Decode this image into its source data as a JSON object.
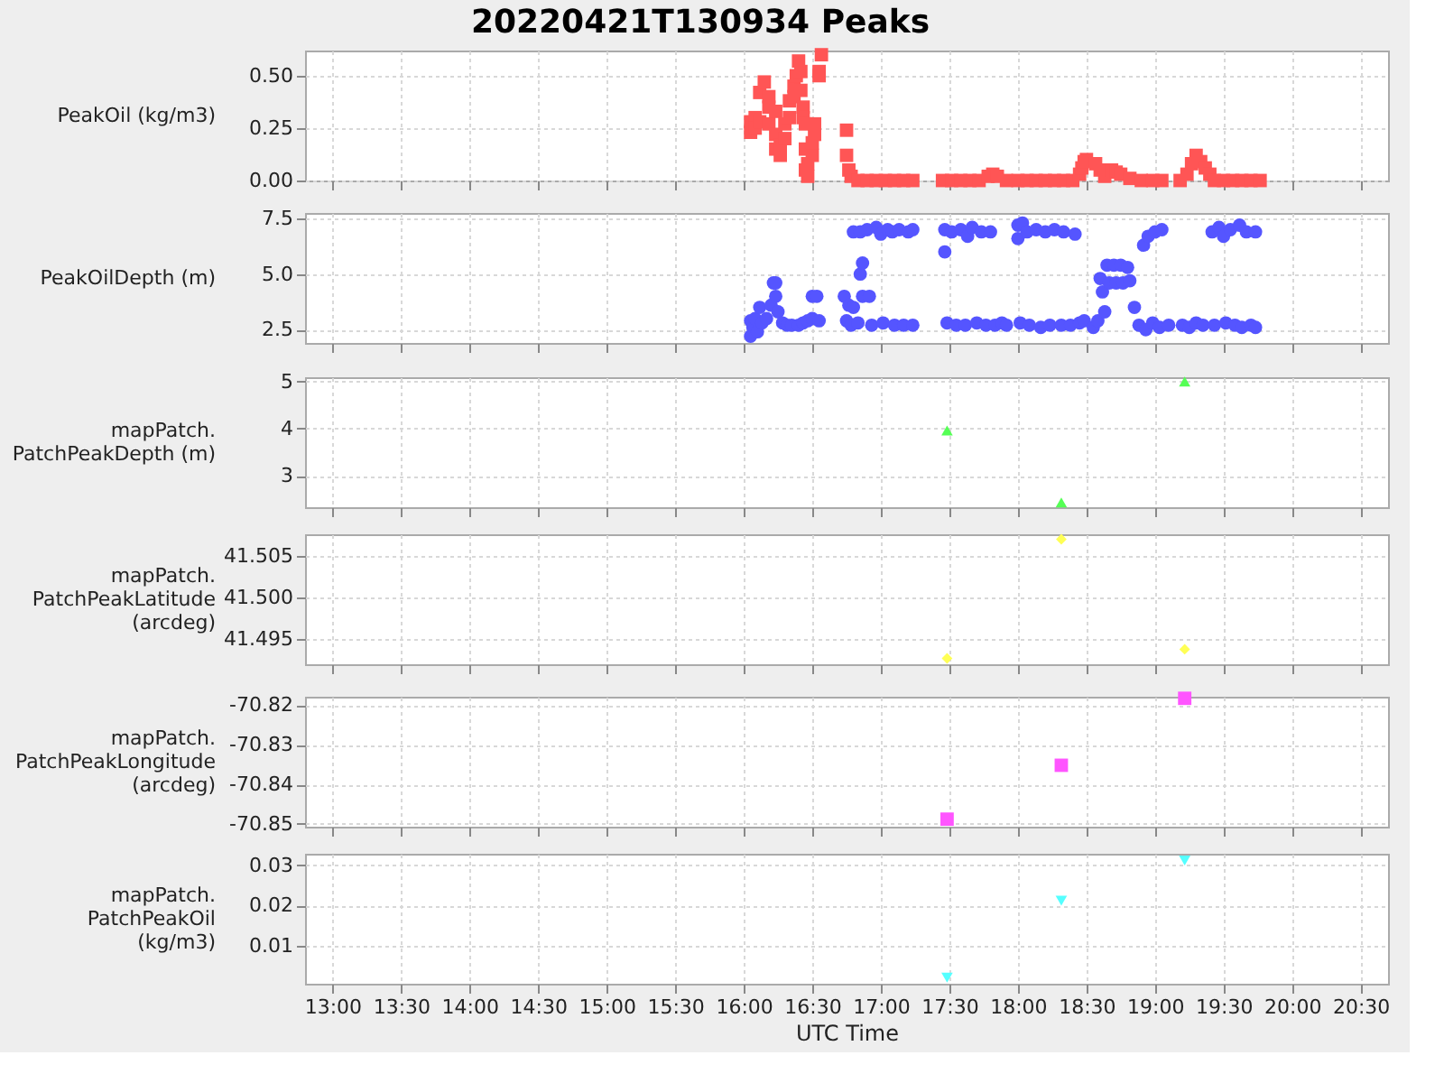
{
  "chart_data": [
    {
      "type": "scatter",
      "title": "20220421T130934 Peaks",
      "ylabel": "PeakOil (kg/m3)",
      "marker": "square",
      "grid": true,
      "tick_labels": "y",
      "xlim": [
        "2022-04-21T12:48",
        "2022-04-21T20:42"
      ],
      "xticks": [
        {
          "value": "2022-04-21T13:00",
          "label": null
        },
        {
          "value": "2022-04-21T13:30",
          "label": null
        },
        {
          "value": "2022-04-21T14:00",
          "label": null
        },
        {
          "value": "2022-04-21T14:30",
          "label": null
        },
        {
          "value": "2022-04-21T15:00",
          "label": null
        },
        {
          "value": "2022-04-21T15:30",
          "label": null
        },
        {
          "value": "2022-04-21T16:00",
          "label": null
        },
        {
          "value": "2022-04-21T16:30",
          "label": null
        },
        {
          "value": "2022-04-21T17:00",
          "label": null
        },
        {
          "value": "2022-04-21T17:30",
          "label": null
        },
        {
          "value": "2022-04-21T18:00",
          "label": null
        },
        {
          "value": "2022-04-21T18:30",
          "label": null
        },
        {
          "value": "2022-04-21T19:00",
          "label": null
        },
        {
          "value": "2022-04-21T19:30",
          "label": null
        },
        {
          "value": "2022-04-21T20:00",
          "label": null
        },
        {
          "value": "2022-04-21T20:30",
          "label": null
        }
      ],
      "ylim": [
        0,
        0.62
      ],
      "yticks": [
        {
          "value": 0,
          "label": "0.00"
        },
        {
          "value": 0.25,
          "label": "0.25"
        },
        {
          "value": 0.5,
          "label": "0.50"
        }
      ],
      "x": [
        "2022-04-21T16:03",
        "2022-04-21T16:03",
        "2022-04-21T16:05",
        "2022-04-21T16:05",
        "2022-04-21T16:07",
        "2022-04-21T16:07",
        "2022-04-21T16:09",
        "2022-04-21T16:11",
        "2022-04-21T16:11",
        "2022-04-21T16:11",
        "2022-04-21T16:14",
        "2022-04-21T16:14",
        "2022-04-21T16:14",
        "2022-04-21T16:16",
        "2022-04-21T16:16",
        "2022-04-21T16:18",
        "2022-04-21T16:18",
        "2022-04-21T16:20",
        "2022-04-21T16:20",
        "2022-04-21T16:22",
        "2022-04-21T16:22",
        "2022-04-21T16:23",
        "2022-04-21T16:24",
        "2022-04-21T16:25",
        "2022-04-21T16:25",
        "2022-04-21T16:26",
        "2022-04-21T16:26",
        "2022-04-21T16:27",
        "2022-04-21T16:27",
        "2022-04-21T16:27",
        "2022-04-21T16:28",
        "2022-04-21T16:28",
        "2022-04-21T16:30",
        "2022-04-21T16:30",
        "2022-04-21T16:31",
        "2022-04-21T16:31",
        "2022-04-21T16:33",
        "2022-04-21T16:33",
        "2022-04-21T16:34",
        "2022-04-21T16:45",
        "2022-04-21T16:45",
        "2022-04-21T16:46",
        "2022-04-21T16:47",
        "2022-04-21T16:50",
        "2022-04-21T16:54",
        "2022-04-21T16:58",
        "2022-04-21T17:02",
        "2022-04-21T17:06",
        "2022-04-21T17:10",
        "2022-04-21T17:14",
        "2022-04-21T17:27",
        "2022-04-21T17:31",
        "2022-04-21T17:35",
        "2022-04-21T17:39",
        "2022-04-21T17:43",
        "2022-04-21T17:47",
        "2022-04-21T17:49",
        "2022-04-21T17:51",
        "2022-04-21T17:55",
        "2022-04-21T18:00",
        "2022-04-21T18:04",
        "2022-04-21T18:08",
        "2022-04-21T18:12",
        "2022-04-21T18:16",
        "2022-04-21T18:20",
        "2022-04-21T18:24",
        "2022-04-21T18:27",
        "2022-04-21T18:28",
        "2022-04-21T18:29",
        "2022-04-21T18:30",
        "2022-04-21T18:34",
        "2022-04-21T18:36",
        "2022-04-21T18:38",
        "2022-04-21T18:41",
        "2022-04-21T18:43",
        "2022-04-21T18:45",
        "2022-04-21T18:49",
        "2022-04-21T18:54",
        "2022-04-21T18:59",
        "2022-04-21T19:03",
        "2022-04-21T19:11",
        "2022-04-21T19:14",
        "2022-04-21T19:16",
        "2022-04-21T19:18",
        "2022-04-21T19:20",
        "2022-04-21T19:22",
        "2022-04-21T19:24",
        "2022-04-21T19:26",
        "2022-04-21T19:30",
        "2022-04-21T19:34",
        "2022-04-21T19:38",
        "2022-04-21T19:42",
        "2022-04-21T19:46"
      ],
      "series": [
        {
          "color": "#ff5555",
          "values": [
            0.28,
            0.23,
            0.3,
            0.25,
            0.42,
            0.28,
            0.47,
            0.4,
            0.35,
            0.27,
            0.15,
            0.22,
            0.33,
            0.12,
            0.17,
            0.2,
            0.27,
            0.3,
            0.38,
            0.45,
            0.4,
            0.5,
            0.57,
            0.52,
            0.43,
            0.35,
            0.3,
            0.27,
            0.15,
            0.05,
            0.02,
            0.08,
            0.12,
            0.18,
            0.22,
            0.27,
            0.52,
            0.5,
            0.6,
            0.24,
            0.12,
            0.05,
            0.02,
            0,
            0,
            0,
            0,
            0,
            0,
            0,
            0,
            0,
            0,
            0,
            0,
            0.02,
            0.03,
            0.02,
            0,
            0,
            0,
            0,
            0,
            0,
            0,
            0,
            0.03,
            0.06,
            0.09,
            0.1,
            0.08,
            0.05,
            0.02,
            0.05,
            0.04,
            0.03,
            0.01,
            0,
            0,
            0,
            0,
            0.03,
            0.08,
            0.12,
            0.09,
            0.06,
            0.03,
            0,
            0,
            0,
            0,
            0,
            0
          ]
        }
      ]
    },
    {
      "type": "scatter",
      "ylabel": "PeakOilDepth (m)",
      "marker": "circle",
      "grid": true,
      "tick_labels": "y",
      "xlim": [
        "2022-04-21T12:48",
        "2022-04-21T20:42"
      ],
      "xticks": [
        {
          "value": "2022-04-21T13:00",
          "label": null
        },
        {
          "value": "2022-04-21T13:30",
          "label": null
        },
        {
          "value": "2022-04-21T14:00",
          "label": null
        },
        {
          "value": "2022-04-21T14:30",
          "label": null
        },
        {
          "value": "2022-04-21T15:00",
          "label": null
        },
        {
          "value": "2022-04-21T15:30",
          "label": null
        },
        {
          "value": "2022-04-21T16:00",
          "label": null
        },
        {
          "value": "2022-04-21T16:30",
          "label": null
        },
        {
          "value": "2022-04-21T17:00",
          "label": null
        },
        {
          "value": "2022-04-21T17:30",
          "label": null
        },
        {
          "value": "2022-04-21T18:00",
          "label": null
        },
        {
          "value": "2022-04-21T18:30",
          "label": null
        },
        {
          "value": "2022-04-21T19:00",
          "label": null
        },
        {
          "value": "2022-04-21T19:30",
          "label": null
        },
        {
          "value": "2022-04-21T20:00",
          "label": null
        },
        {
          "value": "2022-04-21T20:30",
          "label": null
        }
      ],
      "ylim": [
        1.9,
        7.75
      ],
      "yticks": [
        2.5,
        {
          "value": 5,
          "label": "5.0"
        },
        7.5
      ],
      "x": [
        "2022-04-21T16:03",
        "2022-04-21T16:03",
        "2022-04-21T16:04",
        "2022-04-21T16:05",
        "2022-04-21T16:06",
        "2022-04-21T16:07",
        "2022-04-21T16:08",
        "2022-04-21T16:10",
        "2022-04-21T16:12",
        "2022-04-21T16:13",
        "2022-04-21T16:14",
        "2022-04-21T16:14",
        "2022-04-21T16:15",
        "2022-04-21T16:17",
        "2022-04-21T16:19",
        "2022-04-21T16:21",
        "2022-04-21T16:24",
        "2022-04-21T16:26",
        "2022-04-21T16:28",
        "2022-04-21T16:30",
        "2022-04-21T16:30",
        "2022-04-21T16:32",
        "2022-04-21T16:33",
        "2022-04-21T16:44",
        "2022-04-21T16:45",
        "2022-04-21T16:46",
        "2022-04-21T16:47",
        "2022-04-21T16:48",
        "2022-04-21T16:50",
        "2022-04-21T16:51",
        "2022-04-21T16:52",
        "2022-04-21T16:52",
        "2022-04-21T16:55",
        "2022-04-21T16:48",
        "2022-04-21T16:51",
        "2022-04-21T16:54",
        "2022-04-21T16:56",
        "2022-04-21T16:58",
        "2022-04-21T17:00",
        "2022-04-21T17:01",
        "2022-04-21T17:03",
        "2022-04-21T17:05",
        "2022-04-21T17:06",
        "2022-04-21T17:08",
        "2022-04-21T17:10",
        "2022-04-21T17:12",
        "2022-04-21T17:14",
        "2022-04-21T17:14",
        "2022-04-21T17:28",
        "2022-04-21T17:28",
        "2022-04-21T17:29",
        "2022-04-21T17:31",
        "2022-04-21T17:33",
        "2022-04-21T17:35",
        "2022-04-21T17:37",
        "2022-04-21T17:38",
        "2022-04-21T17:40",
        "2022-04-21T17:42",
        "2022-04-21T17:44",
        "2022-04-21T17:46",
        "2022-04-21T17:48",
        "2022-04-21T17:50",
        "2022-04-21T17:53",
        "2022-04-21T17:55",
        "2022-04-21T18:00",
        "2022-04-21T18:00",
        "2022-04-21T18:01",
        "2022-04-21T18:02",
        "2022-04-21T18:04",
        "2022-04-21T18:05",
        "2022-04-21T18:08",
        "2022-04-21T18:10",
        "2022-04-21T18:12",
        "2022-04-21T18:14",
        "2022-04-21T18:16",
        "2022-04-21T18:19",
        "2022-04-21T18:20",
        "2022-04-21T18:23",
        "2022-04-21T18:25",
        "2022-04-21T18:27",
        "2022-04-21T18:29",
        "2022-04-21T18:33",
        "2022-04-21T18:35",
        "2022-04-21T18:36",
        "2022-04-21T18:37",
        "2022-04-21T18:38",
        "2022-04-21T18:39",
        "2022-04-21T18:40",
        "2022-04-21T18:42",
        "2022-04-21T18:43",
        "2022-04-21T18:45",
        "2022-04-21T18:46",
        "2022-04-21T18:48",
        "2022-04-21T18:49",
        "2022-04-21T18:51",
        "2022-04-21T18:53",
        "2022-04-21T18:55",
        "2022-04-21T18:57",
        "2022-04-21T18:56",
        "2022-04-21T18:59",
        "2022-04-21T19:00",
        "2022-04-21T19:02",
        "2022-04-21T19:03",
        "2022-04-21T19:06",
        "2022-04-21T19:12",
        "2022-04-21T19:15",
        "2022-04-21T19:18",
        "2022-04-21T19:21",
        "2022-04-21T19:25",
        "2022-04-21T19:26",
        "2022-04-21T19:28",
        "2022-04-21T19:30",
        "2022-04-21T19:31",
        "2022-04-21T19:33",
        "2022-04-21T19:35",
        "2022-04-21T19:37",
        "2022-04-21T19:38",
        "2022-04-21T19:40",
        "2022-04-21T19:42",
        "2022-04-21T19:44",
        "2022-04-21T19:44"
      ],
      "series": [
        {
          "color": "#5555ff",
          "values": [
            2.2,
            2.9,
            2.6,
            3.0,
            2.4,
            3.5,
            2.8,
            3.0,
            3.6,
            4.6,
            4.6,
            4.0,
            3.3,
            2.8,
            2.7,
            2.7,
            2.7,
            2.8,
            2.9,
            4.0,
            3.0,
            4.0,
            2.9,
            4.0,
            2.9,
            3.6,
            2.7,
            3.5,
            2.8,
            5.0,
            5.5,
            4.0,
            4.0,
            6.9,
            6.9,
            7.0,
            2.7,
            7.1,
            6.8,
            2.8,
            7.0,
            6.9,
            2.7,
            7.0,
            2.7,
            6.9,
            7.0,
            2.7,
            7.0,
            6.0,
            2.8,
            6.9,
            2.7,
            7.0,
            2.7,
            6.7,
            7.1,
            2.8,
            6.9,
            2.7,
            6.9,
            2.7,
            2.8,
            2.7,
            7.2,
            6.6,
            2.8,
            7.3,
            6.9,
            2.7,
            7.0,
            2.6,
            6.9,
            2.7,
            7.0,
            2.7,
            6.9,
            2.7,
            6.8,
            2.8,
            2.9,
            2.6,
            2.9,
            4.8,
            4.2,
            3.3,
            5.4,
            4.6,
            5.4,
            4.6,
            5.4,
            4.6,
            5.3,
            4.7,
            3.5,
            2.7,
            6.3,
            6.7,
            2.5,
            2.8,
            6.9,
            2.6,
            7.0,
            2.7,
            2.7,
            2.6,
            2.8,
            2.7,
            6.9,
            2.7,
            7.1,
            6.7,
            2.8,
            7.0,
            2.7,
            7.2,
            2.6,
            6.9,
            2.7,
            6.9,
            2.6
          ]
        }
      ]
    },
    {
      "type": "scatter",
      "ylabel": "mapPatch.PatchPeakDepth (m)",
      "marker": "triangle",
      "grid": true,
      "tick_labels": "y",
      "xlim": [
        "2022-04-21T12:48",
        "2022-04-21T20:42"
      ],
      "xticks": [
        {
          "value": "2022-04-21T13:00",
          "label": null
        },
        {
          "value": "2022-04-21T13:30",
          "label": null
        },
        {
          "value": "2022-04-21T14:00",
          "label": null
        },
        {
          "value": "2022-04-21T14:30",
          "label": null
        },
        {
          "value": "2022-04-21T15:00",
          "label": null
        },
        {
          "value": "2022-04-21T15:30",
          "label": null
        },
        {
          "value": "2022-04-21T16:00",
          "label": null
        },
        {
          "value": "2022-04-21T16:30",
          "label": null
        },
        {
          "value": "2022-04-21T17:00",
          "label": null
        },
        {
          "value": "2022-04-21T17:30",
          "label": null
        },
        {
          "value": "2022-04-21T18:00",
          "label": null
        },
        {
          "value": "2022-04-21T18:30",
          "label": null
        },
        {
          "value": "2022-04-21T19:00",
          "label": null
        },
        {
          "value": "2022-04-21T19:30",
          "label": null
        },
        {
          "value": "2022-04-21T20:00",
          "label": null
        },
        {
          "value": "2022-04-21T20:30",
          "label": null
        }
      ],
      "ylim": [
        2.33,
        5.09
      ],
      "yticks": [
        3,
        4,
        5
      ],
      "x": [
        "2022-04-21T17:29",
        "2022-04-21T18:19",
        "2022-04-21T19:13"
      ],
      "series": [
        {
          "color": "#55ff55",
          "values": [
            3.96,
            2.43,
            5.0
          ]
        }
      ]
    },
    {
      "type": "scatter",
      "ylabel": "mapPatch.PatchPeakLatitude (arcdeg)",
      "marker": "diamond",
      "grid": true,
      "tick_labels": "y",
      "xlim": [
        "2022-04-21T12:48",
        "2022-04-21T20:42"
      ],
      "xticks": [
        {
          "value": "2022-04-21T13:00",
          "label": null
        },
        {
          "value": "2022-04-21T13:30",
          "label": null
        },
        {
          "value": "2022-04-21T14:00",
          "label": null
        },
        {
          "value": "2022-04-21T14:30",
          "label": null
        },
        {
          "value": "2022-04-21T15:00",
          "label": null
        },
        {
          "value": "2022-04-21T15:30",
          "label": null
        },
        {
          "value": "2022-04-21T16:00",
          "label": null
        },
        {
          "value": "2022-04-21T16:30",
          "label": null
        },
        {
          "value": "2022-04-21T17:00",
          "label": null
        },
        {
          "value": "2022-04-21T17:30",
          "label": null
        },
        {
          "value": "2022-04-21T18:00",
          "label": null
        },
        {
          "value": "2022-04-21T18:30",
          "label": null
        },
        {
          "value": "2022-04-21T19:00",
          "label": null
        },
        {
          "value": "2022-04-21T19:30",
          "label": null
        },
        {
          "value": "2022-04-21T20:00",
          "label": null
        },
        {
          "value": "2022-04-21T20:30",
          "label": null
        }
      ],
      "ylim": [
        41.492,
        41.5076
      ],
      "yticks": [
        41.495,
        {
          "value": 41.5,
          "label": "41.500"
        },
        41.505
      ],
      "x": [
        "2022-04-21T17:29",
        "2022-04-21T18:19",
        "2022-04-21T19:13"
      ],
      "series": [
        {
          "color": "#ffff55",
          "values": [
            41.4927,
            41.507,
            41.4938
          ]
        }
      ]
    },
    {
      "type": "scatter",
      "ylabel": "mapPatch.PatchPeakLongitude (arcdeg)",
      "marker": "square",
      "grid": true,
      "tick_labels": "y",
      "xlim": [
        "2022-04-21T12:48",
        "2022-04-21T20:42"
      ],
      "xticks": [
        {
          "value": "2022-04-21T13:00",
          "label": null
        },
        {
          "value": "2022-04-21T13:30",
          "label": null
        },
        {
          "value": "2022-04-21T14:00",
          "label": null
        },
        {
          "value": "2022-04-21T14:30",
          "label": null
        },
        {
          "value": "2022-04-21T15:00",
          "label": null
        },
        {
          "value": "2022-04-21T15:30",
          "label": null
        },
        {
          "value": "2022-04-21T16:00",
          "label": null
        },
        {
          "value": "2022-04-21T16:30",
          "label": null
        },
        {
          "value": "2022-04-21T17:00",
          "label": null
        },
        {
          "value": "2022-04-21T17:30",
          "label": null
        },
        {
          "value": "2022-04-21T18:00",
          "label": null
        },
        {
          "value": "2022-04-21T18:30",
          "label": null
        },
        {
          "value": "2022-04-21T19:00",
          "label": null
        },
        {
          "value": "2022-04-21T19:30",
          "label": null
        },
        {
          "value": "2022-04-21T20:00",
          "label": null
        },
        {
          "value": "2022-04-21T20:30",
          "label": null
        }
      ],
      "ylim": [
        -70.8507,
        -70.8179
      ],
      "yticks": [
        -70.85,
        -70.84,
        -70.83,
        -70.82
      ],
      "x": [
        "2022-04-21T17:29",
        "2022-04-21T18:19",
        "2022-04-21T19:13"
      ],
      "series": [
        {
          "color": "#ff55ff",
          "values": [
            -70.8488,
            -70.8352,
            -70.8183
          ]
        }
      ]
    },
    {
      "type": "scatter",
      "ylabel": "mapPatch.PatchPeakOil (kg/m3)",
      "xlabel": "UTC Time",
      "marker": "triangle-down",
      "grid": true,
      "xlim": [
        "2022-04-21T12:48",
        "2022-04-21T20:42"
      ],
      "xticks": [
        {
          "value": "2022-04-21T13:00",
          "label": "13:00"
        },
        {
          "value": "2022-04-21T13:30",
          "label": "13:30"
        },
        {
          "value": "2022-04-21T14:00",
          "label": "14:00"
        },
        {
          "value": "2022-04-21T14:30",
          "label": "14:30"
        },
        {
          "value": "2022-04-21T15:00",
          "label": "15:00"
        },
        {
          "value": "2022-04-21T15:30",
          "label": "15:30"
        },
        {
          "value": "2022-04-21T16:00",
          "label": "16:00"
        },
        {
          "value": "2022-04-21T16:30",
          "label": "16:30"
        },
        {
          "value": "2022-04-21T17:00",
          "label": "17:00"
        },
        {
          "value": "2022-04-21T17:30",
          "label": "17:30"
        },
        {
          "value": "2022-04-21T18:00",
          "label": "18:00"
        },
        {
          "value": "2022-04-21T18:30",
          "label": "18:30"
        },
        {
          "value": "2022-04-21T19:00",
          "label": "19:00"
        },
        {
          "value": "2022-04-21T19:30",
          "label": "19:30"
        },
        {
          "value": "2022-04-21T20:00",
          "label": "20:00"
        },
        {
          "value": "2022-04-21T20:30",
          "label": "20:30"
        }
      ],
      "ylim": [
        0.0005,
        0.0329
      ],
      "yticks": [
        0.01,
        0.02,
        0.03
      ],
      "x": [
        "2022-04-21T17:29",
        "2022-04-21T18:19",
        "2022-04-21T19:13"
      ],
      "series": [
        {
          "color": "#55ffff",
          "values": [
            0.002,
            0.0212,
            0.0312
          ]
        }
      ]
    }
  ]
}
